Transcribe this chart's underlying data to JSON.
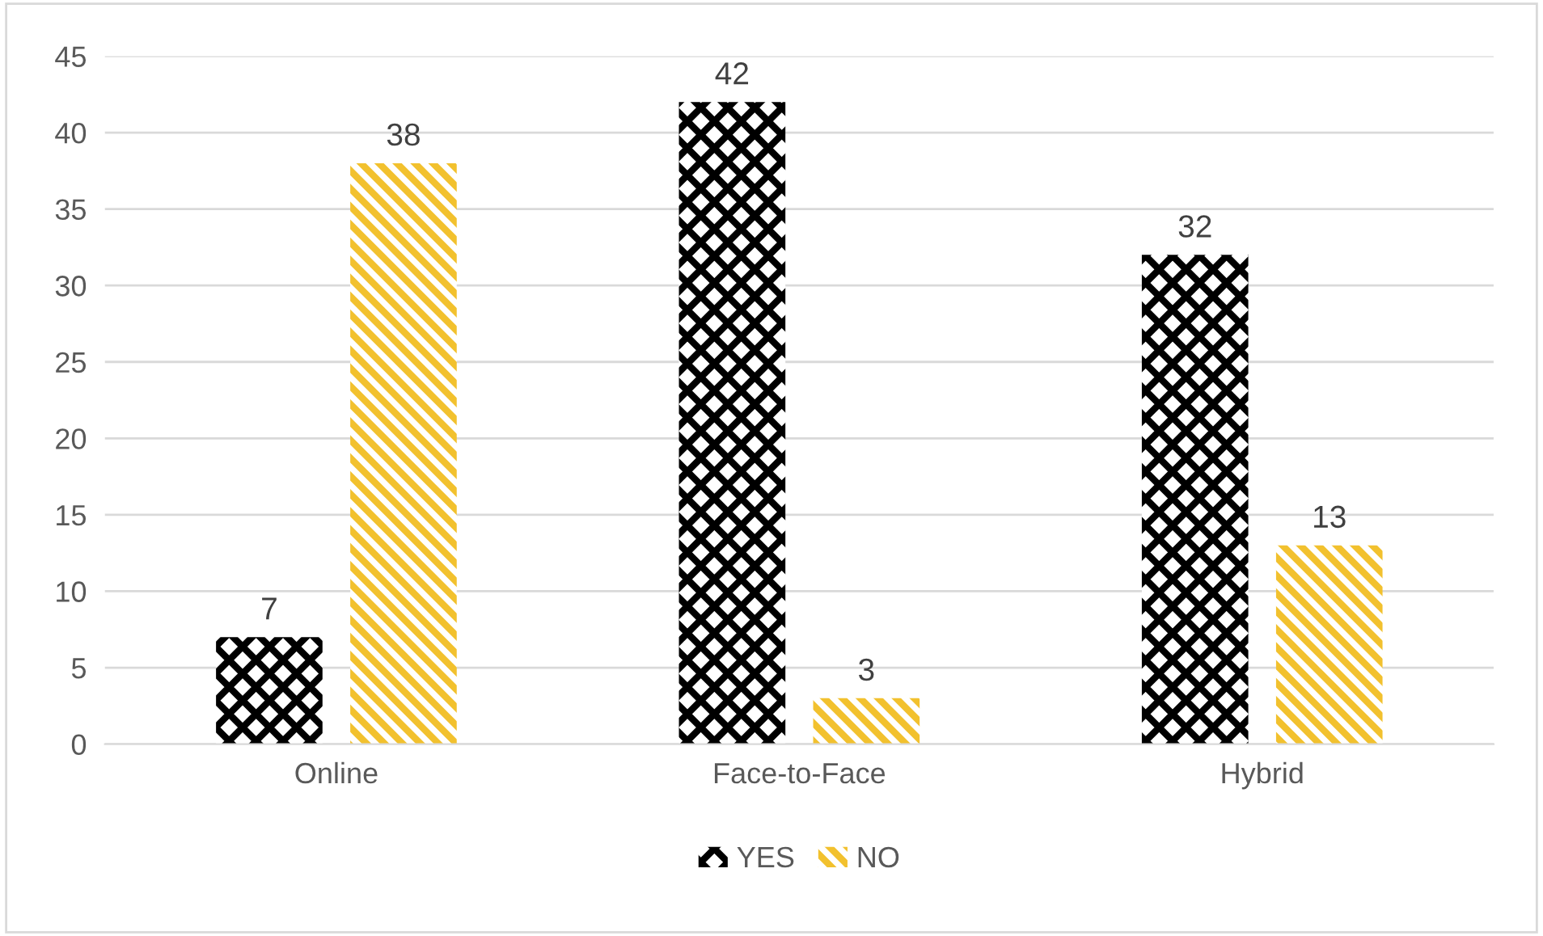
{
  "chart_data": {
    "type": "bar",
    "categories": [
      "Online",
      "Face-to-Face",
      "Hybrid"
    ],
    "series": [
      {
        "name": "YES",
        "color": "#000000",
        "values": [
          7,
          42,
          32
        ]
      },
      {
        "name": "NO",
        "color": "#f2c12e",
        "values": [
          38,
          3,
          13
        ]
      }
    ],
    "ylim": [
      0,
      45
    ],
    "yticks": [
      0,
      5,
      10,
      15,
      20,
      25,
      30,
      35,
      40,
      45
    ],
    "grid": "y",
    "legend": "bottom",
    "data_labels": true
  }
}
